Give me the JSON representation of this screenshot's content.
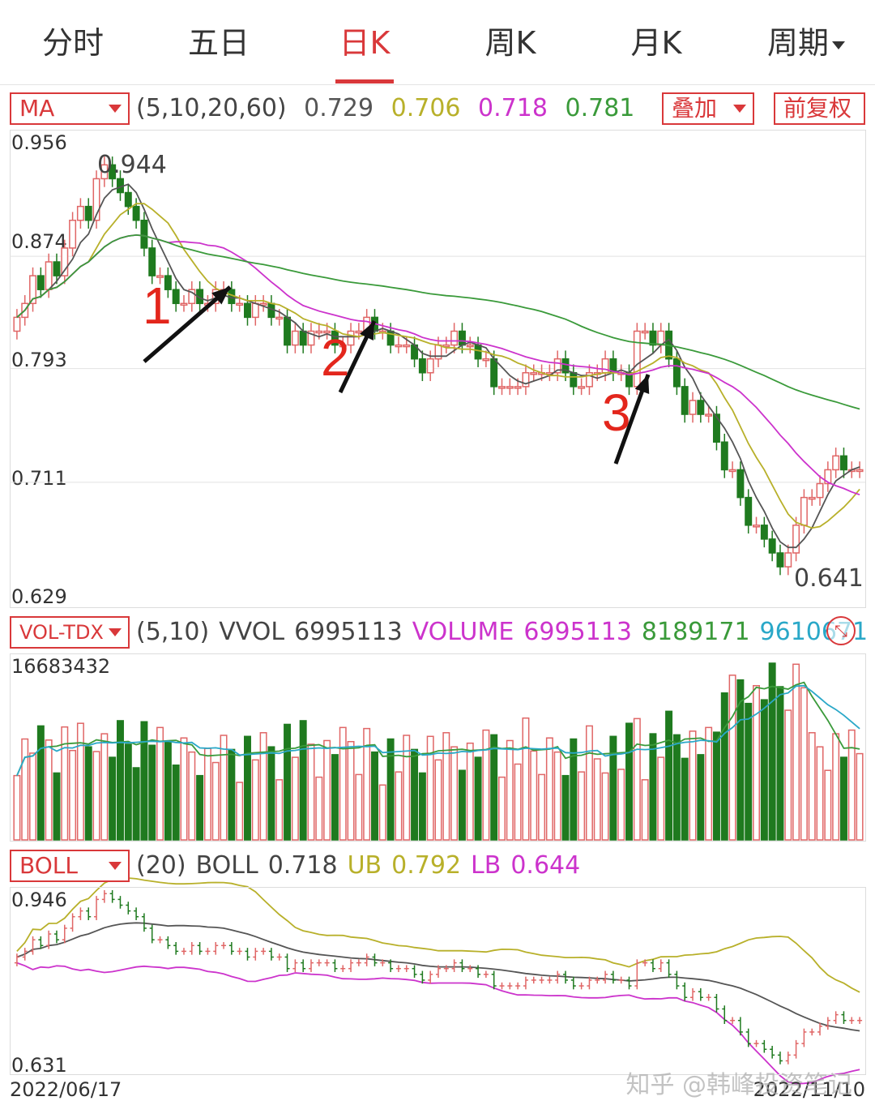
{
  "tabs": [
    {
      "label": "分时",
      "active": false
    },
    {
      "label": "五日",
      "active": false
    },
    {
      "label": "日K",
      "active": true
    },
    {
      "label": "周K",
      "active": false
    },
    {
      "label": "月K",
      "active": false
    },
    {
      "label": "周期",
      "active": false,
      "dropdown": true
    }
  ],
  "ma_bar": {
    "selector": "MA",
    "params": "(5,10,20,60)",
    "ma5": "0.729",
    "ma10": "0.706",
    "ma20": "0.718",
    "ma60": "0.781",
    "overlay_button": "叠加",
    "adjust_button": "前复权"
  },
  "price_axis": {
    "labels": [
      "0.956",
      "0.874",
      "0.793",
      "0.711",
      "0.629"
    ]
  },
  "price_notes": {
    "high": "0.944",
    "low": "0.641"
  },
  "annotations": [
    "1",
    "2",
    "3"
  ],
  "vol_bar": {
    "selector": "VOL-TDX",
    "params": "(5,10)",
    "vvol_label": "VVOL",
    "vvol_value": "6995113",
    "volume_label": "VOLUME",
    "volume_value": "6995113",
    "ma5_value": "8189171",
    "ma10_value": "9610671"
  },
  "vol_axis": {
    "top": "16683432"
  },
  "boll_bar": {
    "selector": "BOLL",
    "params": "(20)",
    "boll_label": "BOLL",
    "boll_value": "0.718",
    "ub_label": "UB",
    "ub_value": "0.792",
    "lb_label": "LB",
    "lb_value": "0.644"
  },
  "boll_axis": {
    "top": "0.946",
    "bottom": "0.631"
  },
  "dates": {
    "start": "2022/06/17",
    "end": "2022/11/10"
  },
  "watermark": "知乎 @韩峰投资笔记",
  "colors": {
    "up": "#e06666",
    "down": "#1f7a1f",
    "accent": "#d9383a",
    "ma5": "#555555",
    "ma10": "#b8b02a",
    "ma20": "#cc33cc",
    "ma60": "#3a9a3a",
    "vol_ma10": "#2aa8c8"
  },
  "chart_data": {
    "type": "candlestick",
    "ylim": [
      0.629,
      0.956
    ],
    "closes": [
      0.83,
      0.84,
      0.86,
      0.85,
      0.87,
      0.86,
      0.88,
      0.9,
      0.91,
      0.9,
      0.93,
      0.94,
      0.93,
      0.92,
      0.91,
      0.9,
      0.88,
      0.86,
      0.86,
      0.85,
      0.84,
      0.84,
      0.85,
      0.84,
      0.84,
      0.85,
      0.85,
      0.84,
      0.84,
      0.83,
      0.84,
      0.84,
      0.83,
      0.83,
      0.81,
      0.82,
      0.81,
      0.82,
      0.82,
      0.82,
      0.81,
      0.81,
      0.82,
      0.82,
      0.83,
      0.82,
      0.82,
      0.81,
      0.81,
      0.81,
      0.8,
      0.79,
      0.8,
      0.81,
      0.81,
      0.82,
      0.81,
      0.81,
      0.8,
      0.8,
      0.78,
      0.78,
      0.78,
      0.78,
      0.79,
      0.79,
      0.79,
      0.79,
      0.8,
      0.79,
      0.78,
      0.78,
      0.79,
      0.79,
      0.8,
      0.79,
      0.79,
      0.78,
      0.82,
      0.82,
      0.81,
      0.82,
      0.8,
      0.78,
      0.76,
      0.77,
      0.76,
      0.76,
      0.74,
      0.72,
      0.72,
      0.7,
      0.68,
      0.68,
      0.67,
      0.66,
      0.65,
      0.66,
      0.68,
      0.7,
      0.7,
      0.71,
      0.72,
      0.73,
      0.72,
      0.72,
      0.72
    ]
  }
}
